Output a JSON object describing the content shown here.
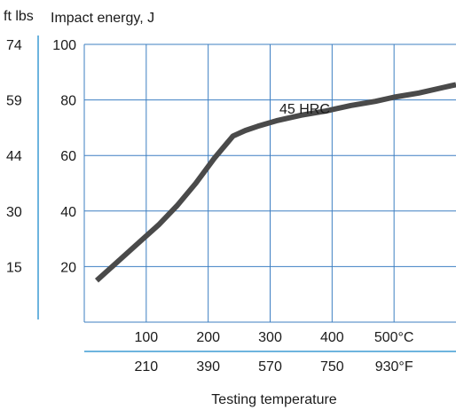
{
  "chart_data": {
    "type": "line",
    "secondary_ylabel": "ft lbs",
    "ylabel": "Impact energy, J",
    "xlabel": "Testing temperature",
    "ylim": [
      0,
      100
    ],
    "xlim": [
      0,
      600
    ],
    "grid": true,
    "x_ticks_celsius": [
      {
        "value": 100,
        "label": "100"
      },
      {
        "value": 200,
        "label": "200"
      },
      {
        "value": 300,
        "label": "300"
      },
      {
        "value": 400,
        "label": "400"
      },
      {
        "value": 500,
        "label": "500°C"
      }
    ],
    "x_ticks_fahrenheit": [
      {
        "value": 100,
        "label": "210"
      },
      {
        "value": 200,
        "label": "390"
      },
      {
        "value": 300,
        "label": "570"
      },
      {
        "value": 400,
        "label": "750"
      },
      {
        "value": 500,
        "label": "930°F"
      }
    ],
    "y_ticks_joule": [
      {
        "value": 20,
        "label": "20"
      },
      {
        "value": 40,
        "label": "40"
      },
      {
        "value": 60,
        "label": "60"
      },
      {
        "value": 80,
        "label": "80"
      },
      {
        "value": 100,
        "label": "100"
      }
    ],
    "y_ticks_ftlbs": [
      {
        "value": 20,
        "label": "15"
      },
      {
        "value": 40,
        "label": "30"
      },
      {
        "value": 60,
        "label": "44"
      },
      {
        "value": 80,
        "label": "59"
      },
      {
        "value": 100,
        "label": "74"
      }
    ],
    "series": [
      {
        "name": "45 HRC",
        "color": "#4a4a4a",
        "x": [
          20,
          50,
          90,
          120,
          150,
          180,
          210,
          240,
          260,
          280,
          310,
          350,
          390,
          430,
          470,
          500,
          540,
          580,
          600
        ],
        "y": [
          15,
          21,
          29,
          35,
          42,
          50,
          59,
          67,
          69,
          70.5,
          72.5,
          74.5,
          76,
          78,
          79.5,
          81,
          82.5,
          84.5,
          85.5
        ]
      }
    ],
    "annotations": [
      {
        "text": "45 HRC",
        "x": 315,
        "y": 77
      }
    ],
    "colors": {
      "grid": "#3d7fc2",
      "line": "#4a4a4a",
      "axis_line": "#3d9bd4"
    }
  }
}
